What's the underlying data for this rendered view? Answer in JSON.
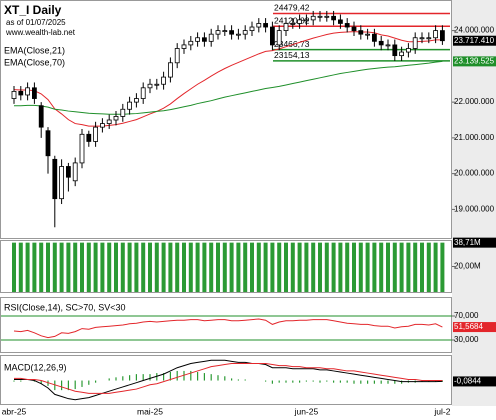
{
  "chart_data": [
    {
      "type": "candlestick",
      "title": "XT_I Daily",
      "subtitle": "as of 01/07/2025",
      "source": "www.wealth-lab.net",
      "categories": [
        "abr-25",
        null,
        null,
        null,
        null,
        null,
        null,
        null,
        null,
        null,
        null,
        null,
        null,
        null,
        null,
        null,
        null,
        null,
        null,
        null,
        "mai-25",
        null,
        null,
        null,
        null,
        null,
        null,
        null,
        null,
        null,
        null,
        null,
        null,
        null,
        null,
        null,
        null,
        null,
        null,
        null,
        null,
        null,
        null,
        "jun-25",
        null,
        null,
        null,
        null,
        null,
        null,
        null,
        null,
        null,
        null,
        null,
        null,
        null,
        null,
        null,
        null,
        null,
        null,
        null,
        "jul-2"
      ],
      "open": [
        22100000,
        22300000,
        22200000,
        22400000,
        21900000,
        21200000,
        20400000,
        19300000,
        20200000,
        19800000,
        20300000,
        21100000,
        20900000,
        21300000,
        21400000,
        21500000,
        21600000,
        21800000,
        22000000,
        22100000,
        22400000,
        22500000,
        22500000,
        22700000,
        23100000,
        23500000,
        23600000,
        23700000,
        23800000,
        23700000,
        23900000,
        24000000,
        24000000,
        23900000,
        23900000,
        24000000,
        24100000,
        24200000,
        24100000,
        23600000,
        24000000,
        24200000,
        24200000,
        24300000,
        24300000,
        24400000,
        24400000,
        24400000,
        24300000,
        24200000,
        24100000,
        24000000,
        23900000,
        23900000,
        23700000,
        23600000,
        23600000,
        23300000,
        23400000,
        23500000,
        23800000,
        23800000,
        23800000,
        24000000
      ],
      "high": [
        22450000,
        22450000,
        22550000,
        22550000,
        22000000,
        21300000,
        20500000,
        20400000,
        20300000,
        20450000,
        21250000,
        21200000,
        21450000,
        21550000,
        21650000,
        21750000,
        21950000,
        22150000,
        22250000,
        22550000,
        22650000,
        22650000,
        22850000,
        23250000,
        23650000,
        23750000,
        23850000,
        23950000,
        23950000,
        24050000,
        24150000,
        24150000,
        24150000,
        24050000,
        24150000,
        24250000,
        24350000,
        24350000,
        24250000,
        24150000,
        24350000,
        24350000,
        24450000,
        24450000,
        24550000,
        24550000,
        24550000,
        24550000,
        24450000,
        24350000,
        24250000,
        24150000,
        24050000,
        24050000,
        23850000,
        23750000,
        23750000,
        23550000,
        23650000,
        23950000,
        23950000,
        23950000,
        24150000,
        24150000
      ],
      "low": [
        21950000,
        22050000,
        22050000,
        21950000,
        21000000,
        20000000,
        18500000,
        19150000,
        19500000,
        19650000,
        20150000,
        20750000,
        20750000,
        21150000,
        21250000,
        21350000,
        21450000,
        21650000,
        21850000,
        21950000,
        22250000,
        22350000,
        22350000,
        22550000,
        22950000,
        23350000,
        23450000,
        23550000,
        23550000,
        23550000,
        23750000,
        23850000,
        23750000,
        23750000,
        23750000,
        23850000,
        23950000,
        23950000,
        23450000,
        23450000,
        23850000,
        24050000,
        24050000,
        24150000,
        24150000,
        24250000,
        24250000,
        24150000,
        24050000,
        23950000,
        23850000,
        23750000,
        23750000,
        23550000,
        23450000,
        23450000,
        23150000,
        23150000,
        23250000,
        23350000,
        23650000,
        23650000,
        23650000,
        23600000
      ],
      "close": [
        22300000,
        22200000,
        22400000,
        22100000,
        21300000,
        20500000,
        19300000,
        20200000,
        19900000,
        20300000,
        21100000,
        20900000,
        21300000,
        21400000,
        21500000,
        21600000,
        21800000,
        22000000,
        22100000,
        22400000,
        22500000,
        22500000,
        22700000,
        23100000,
        23500000,
        23600000,
        23700000,
        23800000,
        23700000,
        23900000,
        24000000,
        24000000,
        23900000,
        23900000,
        24000000,
        24100000,
        24200000,
        24100000,
        23600000,
        24000000,
        24200000,
        24200000,
        24300000,
        24300000,
        24400000,
        24400000,
        24400000,
        24300000,
        24200000,
        24100000,
        24000000,
        23900000,
        23900000,
        23700000,
        23600000,
        23600000,
        23300000,
        23400000,
        23500000,
        23800000,
        23800000,
        23800000,
        24000000,
        23717410
      ],
      "last_close_label": "23.717.410",
      "series": [
        {
          "name": "EMA(Close,21)",
          "color": "#e3262b",
          "values": [
            22350000,
            22340000,
            22340000,
            22320000,
            22230000,
            22070000,
            21810000,
            21670000,
            21510000,
            21400000,
            21370000,
            21330000,
            21330000,
            21330000,
            21350000,
            21370000,
            21410000,
            21460000,
            21510000,
            21590000,
            21670000,
            21740000,
            21830000,
            21950000,
            22100000,
            22240000,
            22370000,
            22500000,
            22610000,
            22730000,
            22840000,
            22940000,
            23030000,
            23110000,
            23190000,
            23270000,
            23350000,
            23420000,
            23440000,
            23490000,
            23550000,
            23610000,
            23670000,
            23730000,
            23790000,
            23840000,
            23890000,
            23930000,
            23950000,
            23960000,
            23970000,
            23960000,
            23960000,
            23940000,
            23880000,
            23850000,
            23790000,
            23730000,
            23690000,
            23690000,
            23700000,
            23710000,
            23740000,
            23740000
          ]
        },
        {
          "name": "EMA(Close,70)",
          "color": "#1f8f2a",
          "values": [
            21900000,
            21900000,
            21910000,
            21910000,
            21890000,
            21860000,
            21800000,
            21780000,
            21750000,
            21730000,
            21710000,
            21690000,
            21680000,
            21670000,
            21660000,
            21660000,
            21660000,
            21670000,
            21680000,
            21700000,
            21720000,
            21740000,
            21760000,
            21790000,
            21830000,
            21870000,
            21910000,
            21960000,
            22000000,
            22040000,
            22090000,
            22140000,
            22180000,
            22220000,
            22260000,
            22300000,
            22340000,
            22380000,
            22410000,
            22440000,
            22480000,
            22520000,
            22560000,
            22600000,
            22640000,
            22680000,
            22720000,
            22760000,
            22800000,
            22830000,
            22860000,
            22890000,
            22920000,
            22940000,
            22960000,
            22980000,
            22990000,
            23010000,
            23030000,
            23050000,
            23070000,
            23090000,
            23120000,
            23139525
          ],
          "last_value_label": "23.139.525"
        }
      ],
      "levels": [
        {
          "value": 24479420,
          "label": "24479,42",
          "color": "#e3262b"
        },
        {
          "value": 24120820,
          "label": "24120,82",
          "color": "#e3262b"
        },
        {
          "value": 23466730,
          "label": "23466,73",
          "color": "#1f8f2a"
        },
        {
          "value": 23154130,
          "label": "23154,13",
          "color": "#1f8f2a"
        }
      ],
      "ylim": [
        18200000,
        24800000
      ],
      "yticks": [
        {
          "value": 24000000,
          "label": "24.000.000"
        },
        {
          "value": 22000000,
          "label": "22.000.000"
        },
        {
          "value": 21000000,
          "label": "21.000.000"
        },
        {
          "value": 20000000,
          "label": "20.000.000"
        },
        {
          "value": 19000000,
          "label": "19.000.000"
        }
      ]
    },
    {
      "type": "bar",
      "color": "#2b9a34",
      "values": [
        38710000,
        38710000,
        38710000,
        38710000,
        38710000,
        38710000,
        38710000,
        38710000,
        38710000,
        38710000,
        38710000,
        38710000,
        38710000,
        38710000,
        38710000,
        38710000,
        38710000,
        38710000,
        38710000,
        38710000,
        38710000,
        38710000,
        38710000,
        38710000,
        38710000,
        38710000,
        38710000,
        38710000,
        38710000,
        38710000,
        38710000,
        38710000,
        38710000,
        38710000,
        38710000,
        38710000,
        38710000,
        38710000,
        38710000,
        38710000,
        38710000,
        38710000,
        38710000,
        38710000,
        38710000,
        38710000,
        38710000,
        38710000,
        38710000,
        38710000,
        38710000,
        38710000,
        38710000,
        38710000,
        38710000,
        38710000,
        38710000,
        38710000,
        38710000,
        38710000,
        38710000,
        38710000,
        38710000,
        38710000
      ],
      "last_value_label": "38,71M",
      "ylim": [
        0,
        40000000
      ],
      "yticks": [
        {
          "value": 20000000,
          "label": "20,00M"
        }
      ]
    },
    {
      "type": "line",
      "title": "RSI(Close,14), SC>70, SV<30",
      "color": "#e3262b",
      "grid_color": "#1f8f2a",
      "values": [
        45,
        44,
        46,
        42,
        37,
        34,
        36,
        42,
        41,
        44,
        49,
        48,
        51,
        52,
        53,
        54,
        55,
        57,
        58,
        60,
        61,
        60,
        61,
        62,
        63,
        63,
        64,
        64,
        62,
        63,
        64,
        64,
        62,
        62,
        63,
        64,
        65,
        63,
        56,
        60,
        62,
        62,
        63,
        63,
        64,
        64,
        64,
        62,
        60,
        58,
        57,
        56,
        56,
        54,
        53,
        53,
        50,
        52,
        53,
        56,
        56,
        55,
        57,
        51.5684
      ],
      "last_value_label": "51,5684",
      "ylim": [
        10,
        100
      ],
      "yticks": [
        {
          "value": 70,
          "label": "70,000"
        },
        {
          "value": 30,
          "label": "30,000"
        }
      ]
    },
    {
      "type": "macd",
      "title": "MACD(12,26,9)",
      "series": [
        {
          "name": "MACD",
          "color": "#000000",
          "values": [
            0.1,
            0.1,
            0.1,
            0,
            -0.3,
            -0.7,
            -1.3,
            -1.5,
            -1.7,
            -1.8,
            -1.7,
            -1.6,
            -1.4,
            -1.2,
            -1,
            -0.8,
            -0.6,
            -0.4,
            -0.2,
            0,
            0.2,
            0.4,
            0.6,
            0.9,
            1.2,
            1.4,
            1.6,
            1.7,
            1.8,
            1.9,
            1.9,
            1.9,
            1.8,
            1.7,
            1.7,
            1.6,
            1.6,
            1.5,
            1.2,
            1.2,
            1.2,
            1.1,
            1.1,
            1.1,
            1.1,
            1,
            1,
            0.9,
            0.8,
            0.7,
            0.6,
            0.5,
            0.4,
            0.3,
            0.2,
            0.1,
            0,
            -0.1,
            -0.1,
            -0.1,
            -0.1,
            -0.1,
            -0.1,
            -0.0844
          ]
        },
        {
          "name": "Signal",
          "color": "#e3262b",
          "values": [
            0.2,
            0.2,
            0.1,
            0.1,
            0,
            -0.2,
            -0.4,
            -0.6,
            -0.8,
            -1,
            -1.1,
            -1.2,
            -1.2,
            -1.2,
            -1.2,
            -1.1,
            -1,
            -0.9,
            -0.8,
            -0.6,
            -0.4,
            -0.3,
            -0.1,
            0.1,
            0.3,
            0.5,
            0.7,
            0.9,
            1.1,
            1.3,
            1.4,
            1.5,
            1.6,
            1.6,
            1.6,
            1.6,
            1.6,
            1.6,
            1.5,
            1.4,
            1.4,
            1.3,
            1.3,
            1.2,
            1.2,
            1.2,
            1.1,
            1.1,
            1,
            0.9,
            0.9,
            0.8,
            0.7,
            0.6,
            0.5,
            0.4,
            0.3,
            0.2,
            0.1,
            0.1,
            0,
            0,
            0,
            0
          ]
        }
      ],
      "histogram": [
        -0.1,
        -0.1,
        0,
        -0.1,
        -0.3,
        -0.5,
        -0.9,
        -0.9,
        -0.9,
        -0.8,
        -0.6,
        -0.4,
        -0.2,
        0,
        0.2,
        0.3,
        0.4,
        0.5,
        0.6,
        0.6,
        0.6,
        0.7,
        0.7,
        0.8,
        0.9,
        0.9,
        0.9,
        0.8,
        0.7,
        0.6,
        0.5,
        0.4,
        0.2,
        0.1,
        0.1,
        0,
        0,
        -0.1,
        -0.3,
        -0.2,
        -0.2,
        -0.2,
        -0.2,
        -0.1,
        -0.1,
        -0.2,
        -0.1,
        -0.2,
        -0.2,
        -0.2,
        -0.3,
        -0.3,
        -0.3,
        -0.3,
        -0.3,
        -0.3,
        -0.3,
        -0.3,
        -0.2,
        -0.2,
        -0.1,
        -0.1,
        -0.1,
        -0.1
      ],
      "histogram_color": "#2b9a34",
      "last_value_label": "-0,0844",
      "ylim": [
        -2.2,
        2.3
      ]
    }
  ]
}
